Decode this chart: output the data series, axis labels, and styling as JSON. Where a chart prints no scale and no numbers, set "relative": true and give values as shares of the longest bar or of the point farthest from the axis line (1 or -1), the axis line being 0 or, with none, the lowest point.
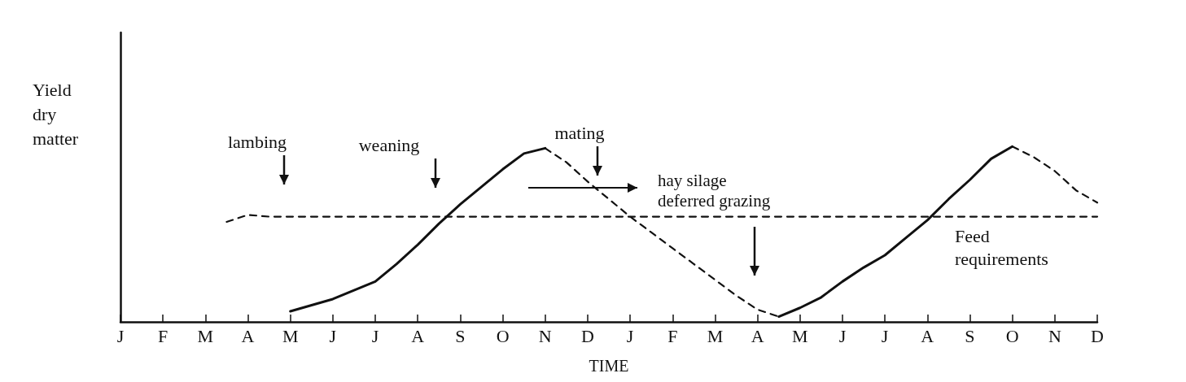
{
  "chart_data": {
    "type": "line",
    "relative": true,
    "xlabel": "TIME",
    "ylabel": "Yield dry matter",
    "marker": "none",
    "grid": false,
    "legend": false,
    "categories": [
      "J",
      null,
      "F",
      null,
      "M",
      null,
      "A",
      null,
      "M",
      null,
      "J",
      null,
      "J",
      null,
      "A",
      null,
      "S",
      null,
      "O",
      null,
      "N",
      null,
      "D",
      null,
      "J",
      null,
      "F",
      null,
      "M",
      null,
      "A",
      null,
      "M",
      null,
      "J",
      null,
      "J",
      null,
      "A",
      null,
      "S",
      null,
      "O",
      null,
      "N",
      null,
      "D"
    ],
    "series": [
      {
        "line_style": "solid",
        "color": "#111111",
        "values": [
          null,
          null,
          null,
          null,
          null,
          null,
          null,
          null,
          0.06,
          0.095,
          0.13,
          0.18,
          0.23,
          0.33,
          0.44,
          0.56,
          0.67,
          0.77,
          0.87,
          0.96,
          0.99,
          null,
          null,
          null,
          null,
          null,
          null,
          null,
          null,
          null,
          null,
          null,
          null,
          null,
          null,
          null,
          null,
          null,
          null,
          null,
          null,
          null,
          null,
          null,
          null,
          null,
          null
        ]
      },
      {
        "line_style": "dashed",
        "color": "#111111",
        "values": [
          null,
          null,
          null,
          null,
          null,
          null,
          null,
          null,
          null,
          null,
          null,
          null,
          null,
          null,
          null,
          null,
          null,
          null,
          null,
          null,
          0.99,
          0.91,
          0.8,
          0.7,
          0.6,
          0.51,
          0.42,
          0.33,
          0.24,
          0.15,
          0.07,
          0.03,
          null,
          null,
          null,
          null,
          null,
          null,
          null,
          null,
          null,
          null,
          null,
          null,
          null,
          null,
          null
        ]
      },
      {
        "line_style": "solid",
        "color": "#111111",
        "values": [
          null,
          null,
          null,
          null,
          null,
          null,
          null,
          null,
          null,
          null,
          null,
          null,
          null,
          null,
          null,
          null,
          null,
          null,
          null,
          null,
          null,
          null,
          null,
          null,
          null,
          null,
          null,
          null,
          null,
          null,
          null,
          0.03,
          0.08,
          0.14,
          0.23,
          0.31,
          0.38,
          0.48,
          0.58,
          0.7,
          0.81,
          0.93,
          1.0,
          null,
          null,
          null,
          null
        ]
      },
      {
        "line_style": "dashed",
        "color": "#111111",
        "values": [
          null,
          null,
          null,
          null,
          null,
          null,
          null,
          null,
          null,
          null,
          null,
          null,
          null,
          null,
          null,
          null,
          null,
          null,
          null,
          null,
          null,
          null,
          null,
          null,
          null,
          null,
          null,
          null,
          null,
          null,
          null,
          null,
          null,
          null,
          null,
          null,
          null,
          null,
          null,
          null,
          null,
          null,
          1.0,
          0.94,
          0.86,
          0.75,
          0.68
        ]
      },
      {
        "name": "Feed requirements",
        "line_style": "dashed",
        "color": "#111111",
        "values": [
          null,
          null,
          null,
          null,
          null,
          0.57,
          0.61,
          0.6,
          0.6,
          0.6,
          0.6,
          0.6,
          0.6,
          0.6,
          0.6,
          0.6,
          0.6,
          0.6,
          0.6,
          0.6,
          0.6,
          0.6,
          0.6,
          0.6,
          0.6,
          0.6,
          0.6,
          0.6,
          0.6,
          0.6,
          0.6,
          0.6,
          0.6,
          0.6,
          0.6,
          0.6,
          0.6,
          0.6,
          0.6,
          0.6,
          0.6,
          0.6,
          0.6,
          0.6,
          0.6,
          0.6,
          0.6
        ]
      }
    ],
    "annotations": [
      "lambing",
      "weaning",
      "mating",
      "hay silage deferred grazing"
    ]
  }
}
